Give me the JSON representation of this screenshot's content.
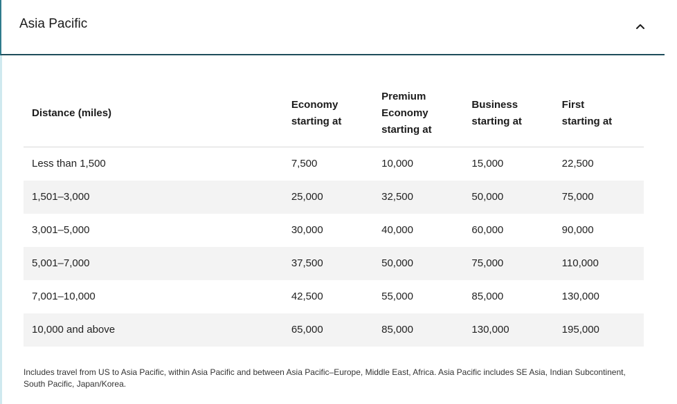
{
  "header": {
    "title": "Asia Pacific",
    "toggle_icon": "chevron-up-icon"
  },
  "table": {
    "columns": [
      {
        "label_lines": [
          "Distance (miles)"
        ]
      },
      {
        "label_lines": [
          "Economy",
          "starting at"
        ]
      },
      {
        "label_lines": [
          "Premium",
          "Economy",
          "starting at"
        ]
      },
      {
        "label_lines": [
          "Business",
          "starting at"
        ]
      },
      {
        "label_lines": [
          "First",
          "starting at"
        ]
      }
    ],
    "rows": [
      [
        "Less than 1,500",
        "7,500",
        "10,000",
        "15,000",
        "22,500"
      ],
      [
        "1,501–3,000",
        "25,000",
        "32,500",
        "50,000",
        "75,000"
      ],
      [
        "3,001–5,000",
        "30,000",
        "40,000",
        "60,000",
        "90,000"
      ],
      [
        "5,001–7,000",
        "37,500",
        "50,000",
        "75,000",
        "110,000"
      ],
      [
        "7,001–10,000",
        "42,500",
        "55,000",
        "85,000",
        "130,000"
      ],
      [
        "10,000 and above",
        "65,000",
        "85,000",
        "130,000",
        "195,000"
      ]
    ]
  },
  "footnote": "Includes travel from US to Asia Pacific, within Asia Pacific and between Asia Pacific–Europe, Middle East, Africa. Asia Pacific includes SE Asia, Indian Subcontinent, South Pacific, Japan/Korea.",
  "colors": {
    "header_border": "#1e4d5b",
    "accent_rail": "#cfe9ef",
    "row_stripe": "#f3f3f3"
  }
}
